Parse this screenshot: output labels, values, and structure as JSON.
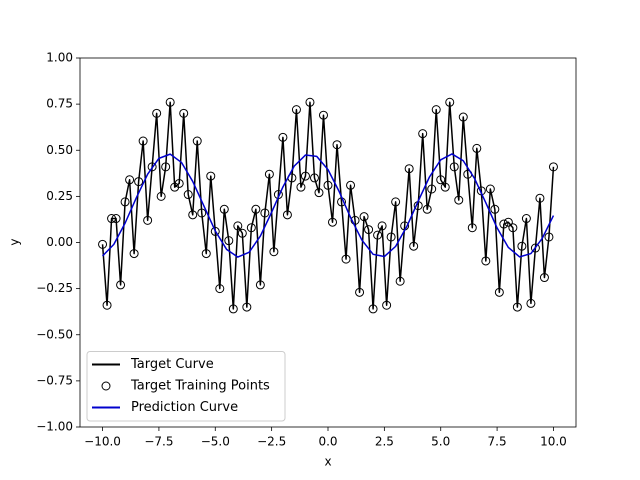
{
  "chart_data": {
    "type": "line",
    "xlabel": "x",
    "ylabel": "y",
    "xlim": [
      -11,
      11
    ],
    "ylim": [
      -1,
      1
    ],
    "xticks": [
      {
        "value": -10,
        "label": "−10.0"
      },
      {
        "value": -7.5,
        "label": "−7.5"
      },
      {
        "value": -5,
        "label": "−5.0"
      },
      {
        "value": -2.5,
        "label": "−2.5"
      },
      {
        "value": 0,
        "label": "0.0"
      },
      {
        "value": 2.5,
        "label": "2.5"
      },
      {
        "value": 5,
        "label": "5.0"
      },
      {
        "value": 7.5,
        "label": "7.5"
      },
      {
        "value": 10,
        "label": "10.0"
      }
    ],
    "yticks": [
      {
        "value": -1,
        "label": "−1.00"
      },
      {
        "value": -0.75,
        "label": "−0.75"
      },
      {
        "value": -0.5,
        "label": "−0.50"
      },
      {
        "value": -0.25,
        "label": "−0.25"
      },
      {
        "value": 0,
        "label": "0.00"
      },
      {
        "value": 0.25,
        "label": "0.25"
      },
      {
        "value": 0.5,
        "label": "0.50"
      },
      {
        "value": 0.75,
        "label": "0.75"
      },
      {
        "value": 1,
        "label": "1.00"
      }
    ],
    "legend": "lower left",
    "x": [
      -10,
      -9.8,
      -9.6,
      -9.4,
      -9.2,
      -9,
      -8.8,
      -8.6,
      -8.4,
      -8.2,
      -8,
      -7.8,
      -7.6,
      -7.4,
      -7.2,
      -7,
      -6.8,
      -6.6,
      -6.4,
      -6.2,
      -6,
      -5.8,
      -5.6,
      -5.4,
      -5.2,
      -5,
      -4.8,
      -4.6,
      -4.4,
      -4.2,
      -4,
      -3.8,
      -3.6,
      -3.4,
      -3.2,
      -3,
      -2.8,
      -2.6,
      -2.4,
      -2.2,
      -2,
      -1.8,
      -1.6,
      -1.4,
      -1.2,
      -1,
      -0.8,
      -0.6,
      -0.4,
      -0.2,
      0,
      0.2,
      0.4,
      0.6,
      0.8,
      1,
      1.2,
      1.4,
      1.6,
      1.8,
      2,
      2.2,
      2.4,
      2.6,
      2.8,
      3,
      3.2,
      3.4,
      3.6,
      3.8,
      4,
      4.2,
      4.4,
      4.6,
      4.8,
      5,
      5.2,
      5.4,
      5.6,
      5.8,
      6,
      6.2,
      6.4,
      6.6,
      6.8,
      7,
      7.2,
      7.4,
      7.6,
      7.8,
      8,
      8.2,
      8.4,
      8.6,
      8.8,
      9,
      9.2,
      9.4,
      9.6,
      9.8,
      10
    ],
    "series": [
      {
        "name": "Target Curve",
        "kind": "line",
        "color": "#000000",
        "values": [
          -0.01,
          -0.34,
          0.13,
          0.13,
          -0.23,
          0.22,
          0.34,
          -0.06,
          0.33,
          0.55,
          0.12,
          0.41,
          0.7,
          0.25,
          0.41,
          0.76,
          0.3,
          0.32,
          0.7,
          0.26,
          0.15,
          0.55,
          0.16,
          -0.06,
          0.36,
          0.06,
          -0.25,
          0.18,
          0.01,
          -0.36,
          0.09,
          0.05,
          -0.35,
          0.08,
          0.18,
          -0.23,
          0.16,
          0.37,
          -0.05,
          0.26,
          0.57,
          0.15,
          0.35,
          0.72,
          0.3,
          0.36,
          0.76,
          0.35,
          0.27,
          0.69,
          0.31,
          0.11,
          0.53,
          0.22,
          -0.09,
          0.31,
          0.12,
          -0.27,
          0.14,
          0.07,
          -0.36,
          0.04,
          0.09,
          -0.34,
          0.03,
          0.22,
          -0.21,
          0.09,
          0.4,
          -0.02,
          0.2,
          0.59,
          0.18,
          0.29,
          0.72,
          0.34,
          0.3,
          0.76,
          0.41,
          0.23,
          0.68,
          0.37,
          0.08,
          0.51,
          0.28,
          -0.1,
          0.29,
          0.18,
          -0.27,
          0.1,
          0.11,
          0.08,
          -0.35,
          -0.02,
          0.13,
          -0.33,
          -0.03,
          0.24,
          -0.19,
          0.03,
          0.41
        ]
      },
      {
        "name": "Target Training Points",
        "kind": "scatter",
        "color": "#000000",
        "values": [
          -0.01,
          -0.34,
          0.13,
          0.13,
          -0.23,
          0.22,
          0.34,
          -0.06,
          0.33,
          0.55,
          0.12,
          0.41,
          0.7,
          0.25,
          0.41,
          0.76,
          0.3,
          0.32,
          0.7,
          0.26,
          0.15,
          0.55,
          0.16,
          -0.06,
          0.36,
          0.06,
          -0.25,
          0.18,
          0.01,
          -0.36,
          0.09,
          0.05,
          -0.35,
          0.08,
          0.18,
          -0.23,
          0.16,
          0.37,
          -0.05,
          0.26,
          0.57,
          0.15,
          0.35,
          0.72,
          0.3,
          0.36,
          0.76,
          0.35,
          0.27,
          0.69,
          0.31,
          0.11,
          0.53,
          0.22,
          -0.09,
          0.31,
          0.12,
          -0.27,
          0.14,
          0.07,
          -0.36,
          0.04,
          0.09,
          -0.34,
          0.03,
          0.22,
          -0.21,
          0.09,
          0.4,
          -0.02,
          0.2,
          0.59,
          0.18,
          0.29,
          0.72,
          0.34,
          0.3,
          0.76,
          0.41,
          0.23,
          0.68,
          0.37,
          0.08,
          0.51,
          0.28,
          -0.1,
          0.29,
          0.18,
          -0.27,
          0.1,
          0.11,
          0.08,
          -0.35,
          -0.02,
          0.13,
          -0.33,
          -0.03,
          0.24,
          -0.19,
          0.03,
          0.41
        ]
      },
      {
        "name": "Prediction Curve",
        "kind": "line",
        "color": "#0000cd",
        "x": [
          -10,
          -9.5,
          -9,
          -8.5,
          -8,
          -7.5,
          -7,
          -6.5,
          -6,
          -5.5,
          -5,
          -4.5,
          -4,
          -3.5,
          -3,
          -2.5,
          -2,
          -1.5,
          -1,
          -0.5,
          0,
          0.5,
          1,
          1.5,
          2,
          2.5,
          3,
          3.5,
          4,
          4.5,
          5,
          5.5,
          6,
          6.5,
          7,
          7.5,
          8,
          8.5,
          9,
          9.5,
          10
        ],
        "values": [
          -0.073,
          -0.01,
          0.105,
          0.243,
          0.37,
          0.456,
          0.479,
          0.434,
          0.331,
          0.197,
          0.063,
          -0.037,
          -0.079,
          -0.053,
          0.035,
          0.164,
          0.301,
          0.414,
          0.474,
          0.467,
          0.395,
          0.275,
          0.136,
          0.014,
          -0.064,
          -0.076,
          -0.021,
          0.088,
          0.224,
          0.355,
          0.448,
          0.48,
          0.443,
          0.347,
          0.215,
          0.079,
          -0.027,
          -0.078,
          -0.06,
          0.022,
          0.146
        ]
      }
    ]
  }
}
